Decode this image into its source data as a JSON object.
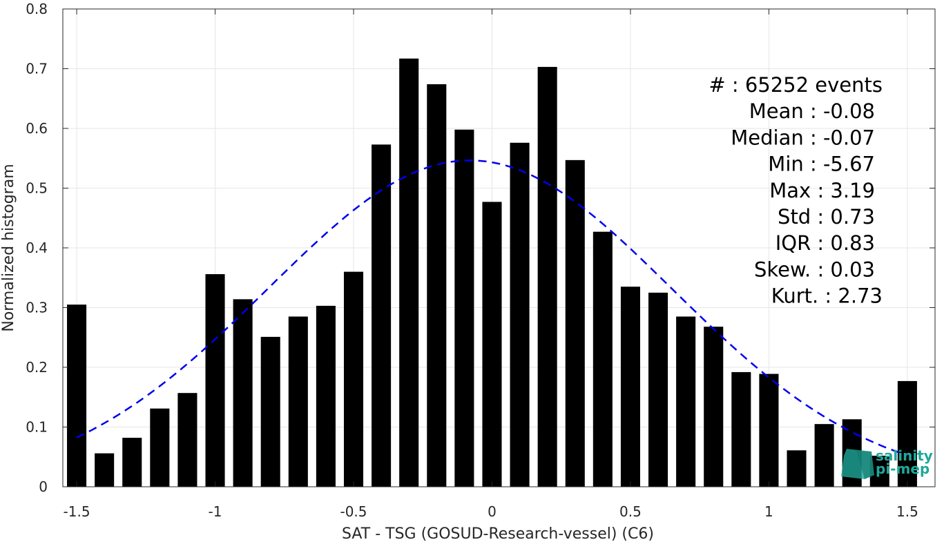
{
  "chart_data": {
    "type": "bar",
    "title": "",
    "xlabel": "SAT - TSG (GOSUD-Research-vessel) (C6)",
    "ylabel": "Normalized histogram",
    "xlim": [
      -1.55,
      1.6
    ],
    "ylim": [
      0,
      0.8
    ],
    "grid": true,
    "x": [
      -1.5,
      -1.4,
      -1.3,
      -1.2,
      -1.1,
      -1.0,
      -0.9,
      -0.8,
      -0.7,
      -0.6,
      -0.5,
      -0.4,
      -0.3,
      -0.2,
      -0.1,
      0.0,
      0.1,
      0.2,
      0.3,
      0.4,
      0.5,
      0.6,
      0.7,
      0.8,
      0.9,
      1.0,
      1.1,
      1.2,
      1.3,
      1.4,
      1.5
    ],
    "values": [
      0.305,
      0.056,
      0.082,
      0.131,
      0.157,
      0.356,
      0.314,
      0.251,
      0.285,
      0.303,
      0.36,
      0.573,
      0.717,
      0.674,
      0.598,
      0.477,
      0.576,
      0.703,
      0.547,
      0.427,
      0.335,
      0.325,
      0.285,
      0.268,
      0.192,
      0.189,
      0.061,
      0.105,
      0.113,
      0.052,
      0.177
    ],
    "bar_color": "#000000",
    "x_ticks": [
      -1.5,
      -1,
      -0.5,
      0,
      0.5,
      1,
      1.5
    ],
    "x_tick_labels": [
      "-1.5",
      "-1",
      "-0.5",
      "0",
      "0.5",
      "1",
      "1.5"
    ],
    "y_ticks": [
      0,
      0.1,
      0.2,
      0.3,
      0.4,
      0.5,
      0.6,
      0.7,
      0.8
    ],
    "y_tick_labels": [
      "0",
      "0.1",
      "0.2",
      "0.3",
      "0.4",
      "0.5",
      "0.6",
      "0.7",
      "0.8"
    ],
    "fit_curve": {
      "style": "dashed",
      "color": "#0000ee",
      "mean": -0.08,
      "std": 0.73,
      "x_range": [
        -1.5,
        1.5
      ]
    },
    "annotations": [
      "#  : 65252 events",
      "Mean : -0.08",
      "Median : -0.07",
      "Min : -5.67",
      "Max : 3.19",
      "Std : 0.73",
      "IQR : 0.83",
      "Skew. : 0.03",
      "Kurt. : 2.73"
    ]
  },
  "logo": {
    "line1": "salinity",
    "line2": "pi-mep",
    "color": "#1fa89a"
  }
}
